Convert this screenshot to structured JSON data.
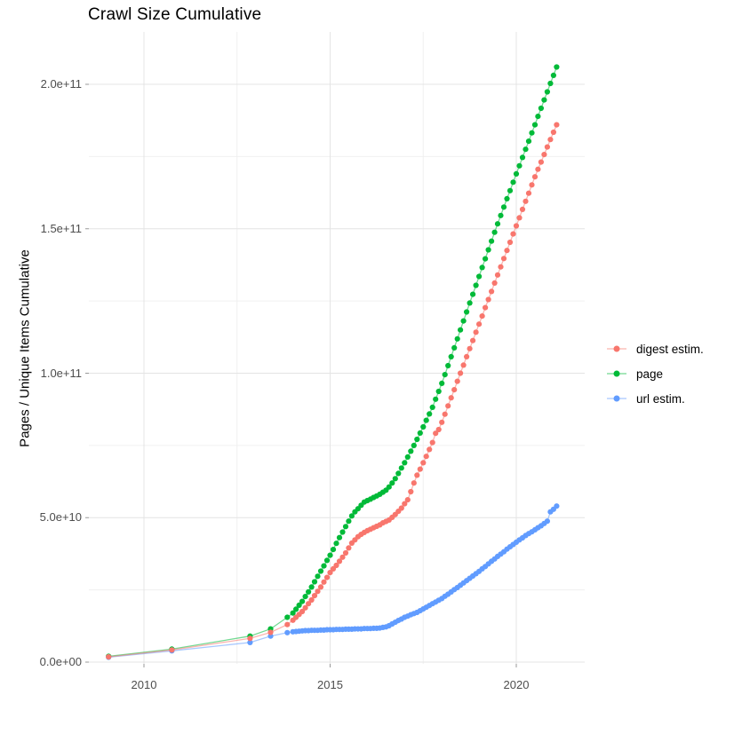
{
  "title": "Crawl Size Cumulative",
  "y_axis": {
    "label": "Pages / Unique Items Cumulative",
    "tick_labels": [
      "0.0e+00",
      "5.0e+10",
      "1.0e+11",
      "1.5e+11",
      "2.0e+11"
    ],
    "tick_values_billion": [
      0,
      50,
      100,
      150,
      200
    ],
    "minor_tick_values_billion": [
      25,
      75,
      125,
      175
    ]
  },
  "x_axis": {
    "tick_labels": [
      "2010",
      "2015",
      "2020"
    ],
    "tick_values": [
      2010,
      2015,
      2020
    ],
    "minor_tick_values": [
      2012.5,
      2017.5
    ]
  },
  "legend": {
    "position": "right-middle",
    "items": [
      {
        "label": "digest estim.",
        "color": "#F8766D"
      },
      {
        "label": "page",
        "color": "#00BA38"
      },
      {
        "label": "url estim.",
        "color": "#619CFF"
      }
    ]
  },
  "chart_data": {
    "type": "line",
    "title": "Crawl Size Cumulative",
    "xlabel": "",
    "ylabel": "Pages / Unique Items Cumulative",
    "x_unit": "year (crawl date)",
    "value_unit": "count, stored in billions (value × 1e9)",
    "xlim": [
      2008.5,
      2021.85
    ],
    "ylim_billion": [
      -2,
      218
    ],
    "grid": "major+minor",
    "legend_position": "right-middle",
    "marker": "point",
    "draw_order": [
      "page",
      "url estim.",
      "digest estim."
    ],
    "series": [
      {
        "name": "digest estim.",
        "color": "#F8766D",
        "points_year_billion": [
          [
            2009.05,
            1.8
          ],
          [
            2010.75,
            4.2
          ],
          [
            2012.85,
            8.2
          ],
          [
            2013.4,
            10.3
          ],
          [
            2013.85,
            13.0
          ],
          [
            2014.0,
            14.5
          ],
          [
            2014.083,
            15.5
          ],
          [
            2014.167,
            16.5
          ],
          [
            2014.25,
            17.5
          ],
          [
            2014.333,
            18.8
          ],
          [
            2014.417,
            20.2
          ],
          [
            2014.5,
            21.5
          ],
          [
            2014.583,
            23.0
          ],
          [
            2014.667,
            24.5
          ],
          [
            2014.75,
            26.0
          ],
          [
            2014.833,
            27.7
          ],
          [
            2014.917,
            29.3
          ],
          [
            2015.0,
            31.0
          ],
          [
            2015.083,
            32.3
          ],
          [
            2015.167,
            33.5
          ],
          [
            2015.25,
            34.9
          ],
          [
            2015.333,
            36.3
          ],
          [
            2015.417,
            37.8
          ],
          [
            2015.5,
            39.5
          ],
          [
            2015.583,
            41.2
          ],
          [
            2015.667,
            42.3
          ],
          [
            2015.75,
            43.4
          ],
          [
            2015.833,
            44.2
          ],
          [
            2015.917,
            44.9
          ],
          [
            2016.0,
            45.5
          ],
          [
            2016.083,
            46.0
          ],
          [
            2016.167,
            46.5
          ],
          [
            2016.25,
            47.0
          ],
          [
            2016.333,
            47.5
          ],
          [
            2016.417,
            48.2
          ],
          [
            2016.5,
            48.7
          ],
          [
            2016.583,
            49.2
          ],
          [
            2016.667,
            50.1
          ],
          [
            2016.75,
            51.1
          ],
          [
            2016.833,
            52.2
          ],
          [
            2016.917,
            53.3
          ],
          [
            2017.0,
            54.8
          ],
          [
            2017.083,
            56.2
          ],
          [
            2017.167,
            59.0
          ],
          [
            2017.25,
            62.0
          ],
          [
            2017.333,
            64.7
          ],
          [
            2017.417,
            66.8
          ],
          [
            2017.5,
            69.0
          ],
          [
            2017.583,
            71.2
          ],
          [
            2017.667,
            73.6
          ],
          [
            2017.75,
            76.0
          ],
          [
            2017.833,
            79.2
          ],
          [
            2017.917,
            80.5
          ],
          [
            2018.0,
            83.0
          ],
          [
            2018.083,
            85.8
          ],
          [
            2018.167,
            88.7
          ],
          [
            2018.25,
            91.5
          ],
          [
            2018.333,
            94.3
          ],
          [
            2018.417,
            97.2
          ],
          [
            2018.5,
            100.0
          ],
          [
            2018.583,
            102.8
          ],
          [
            2018.667,
            105.7
          ],
          [
            2018.75,
            108.5
          ],
          [
            2018.833,
            111.3
          ],
          [
            2018.917,
            114.2
          ],
          [
            2019.0,
            117.0
          ],
          [
            2019.083,
            119.8
          ],
          [
            2019.167,
            122.7
          ],
          [
            2019.25,
            125.5
          ],
          [
            2019.333,
            128.3
          ],
          [
            2019.417,
            131.2
          ],
          [
            2019.5,
            134.0
          ],
          [
            2019.583,
            136.8
          ],
          [
            2019.667,
            139.7
          ],
          [
            2019.75,
            142.5
          ],
          [
            2019.833,
            145.3
          ],
          [
            2019.917,
            148.2
          ],
          [
            2020.0,
            151.0
          ],
          [
            2020.083,
            153.8
          ],
          [
            2020.167,
            156.7
          ],
          [
            2020.25,
            159.5
          ],
          [
            2020.333,
            162.3
          ],
          [
            2020.417,
            165.2
          ],
          [
            2020.5,
            168.0
          ],
          [
            2020.583,
            170.6
          ],
          [
            2020.667,
            173.1
          ],
          [
            2020.75,
            175.7
          ],
          [
            2020.833,
            178.3
          ],
          [
            2020.917,
            180.9
          ],
          [
            2021.0,
            183.4
          ],
          [
            2021.083,
            186.0
          ]
        ]
      },
      {
        "name": "page",
        "color": "#00BA38",
        "points_year_billion": [
          [
            2009.05,
            2.0
          ],
          [
            2010.75,
            4.5
          ],
          [
            2012.85,
            9.0
          ],
          [
            2013.4,
            11.5
          ],
          [
            2013.85,
            15.5
          ],
          [
            2014.0,
            17.0
          ],
          [
            2014.083,
            18.3
          ],
          [
            2014.167,
            19.7
          ],
          [
            2014.25,
            21.0
          ],
          [
            2014.333,
            22.7
          ],
          [
            2014.417,
            24.3
          ],
          [
            2014.5,
            26.0
          ],
          [
            2014.583,
            27.8
          ],
          [
            2014.667,
            29.7
          ],
          [
            2014.75,
            31.5
          ],
          [
            2014.833,
            33.3
          ],
          [
            2014.917,
            35.2
          ],
          [
            2015.0,
            37.0
          ],
          [
            2015.083,
            39.0
          ],
          [
            2015.167,
            41.1
          ],
          [
            2015.25,
            43.1
          ],
          [
            2015.333,
            45.0
          ],
          [
            2015.417,
            46.9
          ],
          [
            2015.5,
            48.8
          ],
          [
            2015.583,
            50.6
          ],
          [
            2015.667,
            52.0
          ],
          [
            2015.75,
            53.1
          ],
          [
            2015.833,
            54.3
          ],
          [
            2015.917,
            55.4
          ],
          [
            2016.0,
            55.9
          ],
          [
            2016.083,
            56.4
          ],
          [
            2016.167,
            57.0
          ],
          [
            2016.25,
            57.5
          ],
          [
            2016.333,
            58.1
          ],
          [
            2016.417,
            58.8
          ],
          [
            2016.5,
            59.5
          ],
          [
            2016.583,
            60.6
          ],
          [
            2016.667,
            62.0
          ],
          [
            2016.75,
            63.5
          ],
          [
            2016.833,
            65.3
          ],
          [
            2016.917,
            67.2
          ],
          [
            2017.0,
            69.0
          ],
          [
            2017.083,
            71.0
          ],
          [
            2017.167,
            73.0
          ],
          [
            2017.25,
            75.0
          ],
          [
            2017.333,
            77.1
          ],
          [
            2017.417,
            79.3
          ],
          [
            2017.5,
            81.4
          ],
          [
            2017.583,
            83.7
          ],
          [
            2017.667,
            85.9
          ],
          [
            2017.75,
            88.2
          ],
          [
            2017.833,
            91.0
          ],
          [
            2017.917,
            93.7
          ],
          [
            2018.0,
            96.5
          ],
          [
            2018.083,
            99.5
          ],
          [
            2018.167,
            102.6
          ],
          [
            2018.25,
            105.7
          ],
          [
            2018.333,
            108.8
          ],
          [
            2018.417,
            111.9
          ],
          [
            2018.5,
            115.0
          ],
          [
            2018.583,
            118.1
          ],
          [
            2018.667,
            121.2
          ],
          [
            2018.75,
            124.3
          ],
          [
            2018.833,
            127.3
          ],
          [
            2018.917,
            130.4
          ],
          [
            2019.0,
            133.5
          ],
          [
            2019.083,
            136.6
          ],
          [
            2019.167,
            139.6
          ],
          [
            2019.25,
            142.7
          ],
          [
            2019.333,
            145.7
          ],
          [
            2019.417,
            148.8
          ],
          [
            2019.5,
            151.7
          ],
          [
            2019.583,
            154.6
          ],
          [
            2019.667,
            157.5
          ],
          [
            2019.75,
            160.4
          ],
          [
            2019.833,
            163.2
          ],
          [
            2019.917,
            166.1
          ],
          [
            2020.0,
            169.0
          ],
          [
            2020.083,
            171.8
          ],
          [
            2020.167,
            174.7
          ],
          [
            2020.25,
            177.5
          ],
          [
            2020.333,
            180.3
          ],
          [
            2020.417,
            183.2
          ],
          [
            2020.5,
            186.0
          ],
          [
            2020.583,
            188.9
          ],
          [
            2020.667,
            191.7
          ],
          [
            2020.75,
            194.6
          ],
          [
            2020.833,
            197.4
          ],
          [
            2020.917,
            200.3
          ],
          [
            2021.0,
            203.1
          ],
          [
            2021.083,
            206.0
          ]
        ]
      },
      {
        "name": "url estim.",
        "color": "#619CFF",
        "points_year_billion": [
          [
            2009.05,
            1.7
          ],
          [
            2010.75,
            3.9
          ],
          [
            2012.85,
            6.8
          ],
          [
            2013.4,
            9.0
          ],
          [
            2013.85,
            10.2
          ],
          [
            2014.0,
            10.5
          ],
          [
            2014.083,
            10.6
          ],
          [
            2014.167,
            10.7
          ],
          [
            2014.25,
            10.8
          ],
          [
            2014.333,
            10.9
          ],
          [
            2014.417,
            10.9
          ],
          [
            2014.5,
            11.0
          ],
          [
            2014.583,
            11.0
          ],
          [
            2014.667,
            11.0
          ],
          [
            2014.75,
            11.1
          ],
          [
            2014.833,
            11.1
          ],
          [
            2014.917,
            11.2
          ],
          [
            2015.0,
            11.2
          ],
          [
            2015.083,
            11.2
          ],
          [
            2015.167,
            11.3
          ],
          [
            2015.25,
            11.3
          ],
          [
            2015.333,
            11.3
          ],
          [
            2015.417,
            11.4
          ],
          [
            2015.5,
            11.4
          ],
          [
            2015.583,
            11.4
          ],
          [
            2015.667,
            11.5
          ],
          [
            2015.75,
            11.5
          ],
          [
            2015.833,
            11.5
          ],
          [
            2015.917,
            11.6
          ],
          [
            2016.0,
            11.6
          ],
          [
            2016.083,
            11.6
          ],
          [
            2016.167,
            11.7
          ],
          [
            2016.25,
            11.7
          ],
          [
            2016.333,
            11.8
          ],
          [
            2016.417,
            12.0
          ],
          [
            2016.5,
            12.2
          ],
          [
            2016.583,
            12.6
          ],
          [
            2016.667,
            13.2
          ],
          [
            2016.75,
            13.8
          ],
          [
            2016.833,
            14.4
          ],
          [
            2016.917,
            14.9
          ],
          [
            2017.0,
            15.5
          ],
          [
            2017.083,
            15.9
          ],
          [
            2017.167,
            16.4
          ],
          [
            2017.25,
            16.8
          ],
          [
            2017.333,
            17.2
          ],
          [
            2017.417,
            17.8
          ],
          [
            2017.5,
            18.4
          ],
          [
            2017.583,
            19.0
          ],
          [
            2017.667,
            19.6
          ],
          [
            2017.75,
            20.2
          ],
          [
            2017.833,
            20.8
          ],
          [
            2017.917,
            21.4
          ],
          [
            2018.0,
            22.0
          ],
          [
            2018.083,
            22.8
          ],
          [
            2018.167,
            23.5
          ],
          [
            2018.25,
            24.3
          ],
          [
            2018.333,
            25.1
          ],
          [
            2018.417,
            25.8
          ],
          [
            2018.5,
            26.6
          ],
          [
            2018.583,
            27.4
          ],
          [
            2018.667,
            28.2
          ],
          [
            2018.75,
            29.0
          ],
          [
            2018.833,
            29.8
          ],
          [
            2018.917,
            30.6
          ],
          [
            2019.0,
            31.4
          ],
          [
            2019.083,
            32.3
          ],
          [
            2019.167,
            33.1
          ],
          [
            2019.25,
            34.0
          ],
          [
            2019.333,
            34.9
          ],
          [
            2019.417,
            35.7
          ],
          [
            2019.5,
            36.6
          ],
          [
            2019.583,
            37.4
          ],
          [
            2019.667,
            38.2
          ],
          [
            2019.75,
            39.1
          ],
          [
            2019.833,
            39.9
          ],
          [
            2019.917,
            40.7
          ],
          [
            2020.0,
            41.5
          ],
          [
            2020.083,
            42.3
          ],
          [
            2020.167,
            43.0
          ],
          [
            2020.25,
            43.8
          ],
          [
            2020.333,
            44.5
          ],
          [
            2020.417,
            45.1
          ],
          [
            2020.5,
            45.8
          ],
          [
            2020.583,
            46.5
          ],
          [
            2020.667,
            47.2
          ],
          [
            2020.75,
            48.0
          ],
          [
            2020.833,
            48.8
          ],
          [
            2020.917,
            52.0
          ],
          [
            2021.0,
            52.9
          ],
          [
            2021.083,
            54.0
          ]
        ]
      }
    ]
  }
}
